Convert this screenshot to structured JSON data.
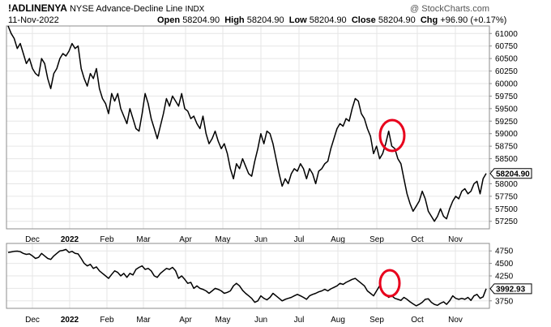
{
  "header": {
    "symbol": "!ADLINENYA",
    "name": "NYSE Advance-Decline Line",
    "exchange": "INDX",
    "date": "11-Nov-2022",
    "open_label": "Open",
    "open": "58204.90",
    "high_label": "High",
    "high": "58204.90",
    "low_label": "Low",
    "low": "58204.90",
    "close_label": "Close",
    "close": "58204.90",
    "chg_label": "Chg",
    "chg": "+96.90 (+0.17%)",
    "watermark": "@ StockCharts.com"
  },
  "colors": {
    "line": "#000000",
    "grid": "#e6e6e6",
    "frame": "#8c8c8c",
    "annotation": "#e8001c"
  },
  "months": [
    {
      "label": "Dec",
      "bold": false
    },
    {
      "label": "2022",
      "bold": true
    },
    {
      "label": "Feb",
      "bold": false
    },
    {
      "label": "Mar",
      "bold": false
    },
    {
      "label": "Apr",
      "bold": false
    },
    {
      "label": "May",
      "bold": false
    },
    {
      "label": "Jun",
      "bold": false
    },
    {
      "label": "Jul",
      "bold": false
    },
    {
      "label": "Aug",
      "bold": false
    },
    {
      "label": "Sep",
      "bold": false
    },
    {
      "label": "Oct",
      "bold": false
    },
    {
      "label": "Nov",
      "bold": false
    }
  ],
  "chart_data": [
    {
      "type": "line",
      "series": [
        {
          "values": [
            61150,
            61000,
            60900,
            60700,
            60800,
            60600,
            60400,
            60500,
            60300,
            60200,
            60150,
            60500,
            60400,
            60100,
            59900,
            60200,
            60300,
            60500,
            60600,
            60550,
            60650,
            60800,
            60700,
            60750,
            60300,
            60100,
            59950,
            60200,
            60100,
            60300,
            59900,
            59700,
            59600,
            59400,
            59800,
            59650,
            59800,
            59500,
            59350,
            59200,
            59500,
            59300,
            59100,
            59050,
            59400,
            59800,
            59600,
            59300,
            59100,
            58900,
            59150,
            59400,
            59700,
            59550,
            59750,
            59650,
            59550,
            59800,
            59500,
            59450,
            59300,
            59350,
            59200,
            59100,
            59350,
            59000,
            58800,
            58900,
            59050,
            58850,
            58700,
            58800,
            58600,
            58300,
            58100,
            58400,
            58300,
            58500,
            58350,
            58200,
            58150,
            58450,
            58700,
            59000,
            58800,
            59050,
            59000,
            58800,
            58500,
            58200,
            57950,
            58100,
            58000,
            58200,
            58300,
            58250,
            58400,
            58300,
            58100,
            58300,
            58200,
            58000,
            58250,
            58300,
            58400,
            58450,
            58700,
            58900,
            59100,
            59200,
            59150,
            59300,
            59250,
            59500,
            59700,
            59650,
            59400,
            59300,
            59100,
            58950,
            58600,
            58750,
            58500,
            58600,
            58800,
            59050,
            58750,
            58700,
            58500,
            58400,
            58100,
            57800,
            57600,
            57450,
            57550,
            57650,
            57850,
            57700,
            57450,
            57350,
            57250,
            57350,
            57500,
            57350,
            57300,
            57500,
            57650,
            57750,
            57700,
            57850,
            57900,
            57800,
            57850,
            58000,
            58050,
            57800,
            58100,
            58205
          ]
        }
      ],
      "y_ticks": [
        61000,
        60750,
        60500,
        60250,
        60000,
        59750,
        59500,
        59250,
        59000,
        58750,
        58500,
        58250,
        58000,
        57750,
        57500,
        57250
      ],
      "ylim": [
        57100,
        61150
      ],
      "last_value": "58204.90"
    },
    {
      "type": "line",
      "series": [
        {
          "values": [
            4720,
            4730,
            4740,
            4745,
            4735,
            4700,
            4680,
            4690,
            4650,
            4600,
            4620,
            4700,
            4650,
            4600,
            4580,
            4650,
            4700,
            4750,
            4760,
            4780,
            4720,
            4740,
            4700,
            4690,
            4600,
            4500,
            4450,
            4480,
            4400,
            4430,
            4350,
            4300,
            4250,
            4200,
            4280,
            4350,
            4320,
            4250,
            4300,
            4220,
            4300,
            4270,
            4380,
            4420,
            4450,
            4380,
            4400,
            4350,
            4250,
            4220,
            4300,
            4350,
            4400,
            4380,
            4420,
            4350,
            4200,
            4250,
            4180,
            4100,
            4120,
            4000,
            4050,
            4000,
            3980,
            3950,
            3900,
            3950,
            4000,
            3980,
            3950,
            3900,
            3920,
            3950,
            4050,
            4100,
            4050,
            3960,
            3900,
            3850,
            3800,
            3720,
            3750,
            3850,
            3800,
            3770,
            3820,
            3900,
            3850,
            3800,
            3750,
            3780,
            3800,
            3820,
            3850,
            3880,
            3850,
            3820,
            3780,
            3850,
            3880,
            3900,
            3930,
            3950,
            3980,
            3950,
            3990,
            4020,
            4050,
            4100,
            4080,
            4120,
            4150,
            4180,
            4200,
            4150,
            4100,
            4050,
            3950,
            3900,
            3850,
            3950,
            4050,
            3920,
            3880,
            3820,
            3850,
            3800,
            3780,
            3760,
            3820,
            3780,
            3730,
            3690,
            3650,
            3680,
            3720,
            3780,
            3790,
            3720,
            3680,
            3660,
            3700,
            3730,
            3680,
            3750,
            3850,
            3800,
            3780,
            3800,
            3780,
            3820,
            3760,
            3850,
            3880,
            3800,
            3830,
            3993
          ]
        }
      ],
      "y_ticks": [
        4750,
        4500,
        4250,
        4000,
        3750
      ],
      "ylim": [
        3600,
        4900
      ],
      "last_value": "3992.93"
    }
  ]
}
